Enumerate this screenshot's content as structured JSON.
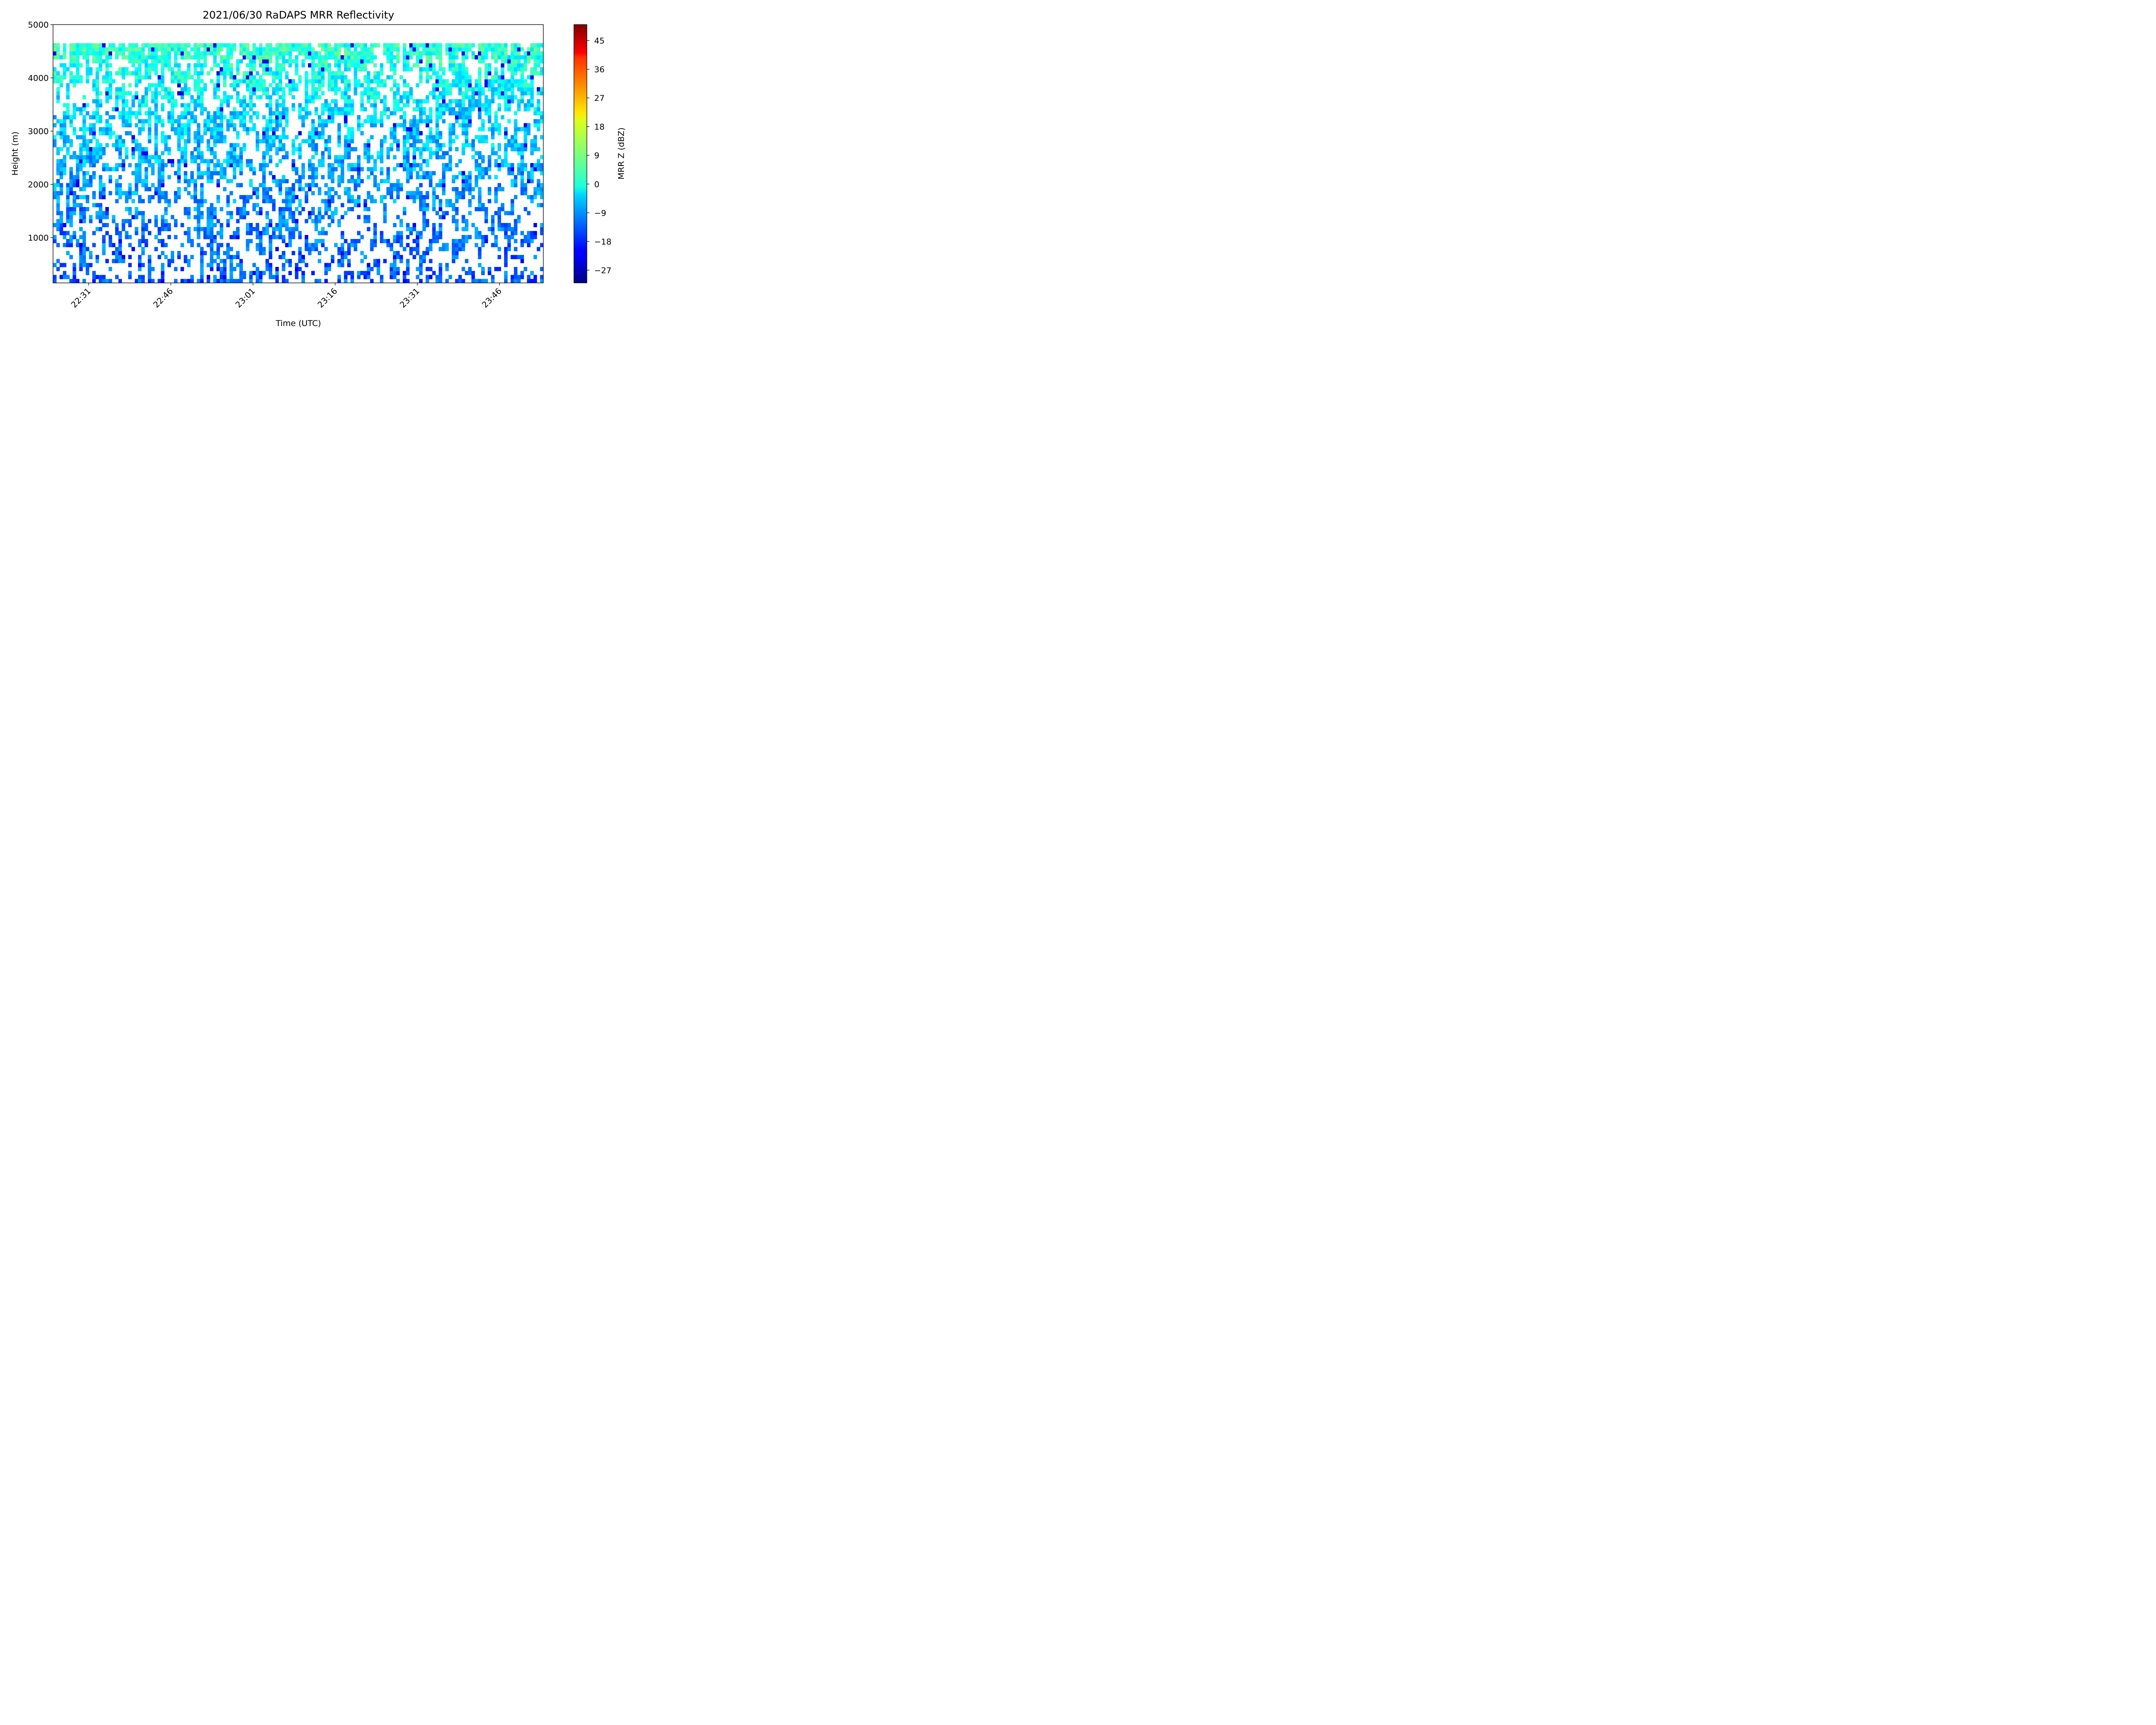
{
  "chart_data": {
    "type": "heatmap",
    "title": "2021/06/30 RaDAPS MRR Reflectivity",
    "xlabel": "Time (UTC)",
    "ylabel": "Height (m)",
    "x_ticks": [
      "22:31",
      "22:46",
      "23:01",
      "23:16",
      "23:31",
      "23:46"
    ],
    "x_tick_minutes": [
      0,
      15,
      30,
      45,
      60,
      75
    ],
    "x_range_minutes_from_2231": [
      -6.5,
      83
    ],
    "y_ticks": [
      "1000",
      "2000",
      "3000",
      "4000",
      "5000"
    ],
    "y_tick_values": [
      1000,
      2000,
      3000,
      4000,
      5000
    ],
    "ylim": [
      150,
      5000
    ],
    "data_top_height_m": 4650,
    "colorbar": {
      "label": "MRR Z (dBZ)",
      "ticks": [
        "−27",
        "−18",
        "−9",
        "0",
        "9",
        "18",
        "27",
        "36",
        "45"
      ],
      "tick_values": [
        -27,
        -18,
        -9,
        0,
        9,
        18,
        27,
        36,
        45
      ],
      "range": [
        -31,
        50
      ],
      "colormap": "jet"
    },
    "z_typical_dbz": {
      "near_top_4500m": 3,
      "mid_3000m": -5,
      "low_1000m": -12,
      "min": -24
    },
    "missing_fraction_low": 0.5,
    "missing_fraction_high": 0.25
  }
}
